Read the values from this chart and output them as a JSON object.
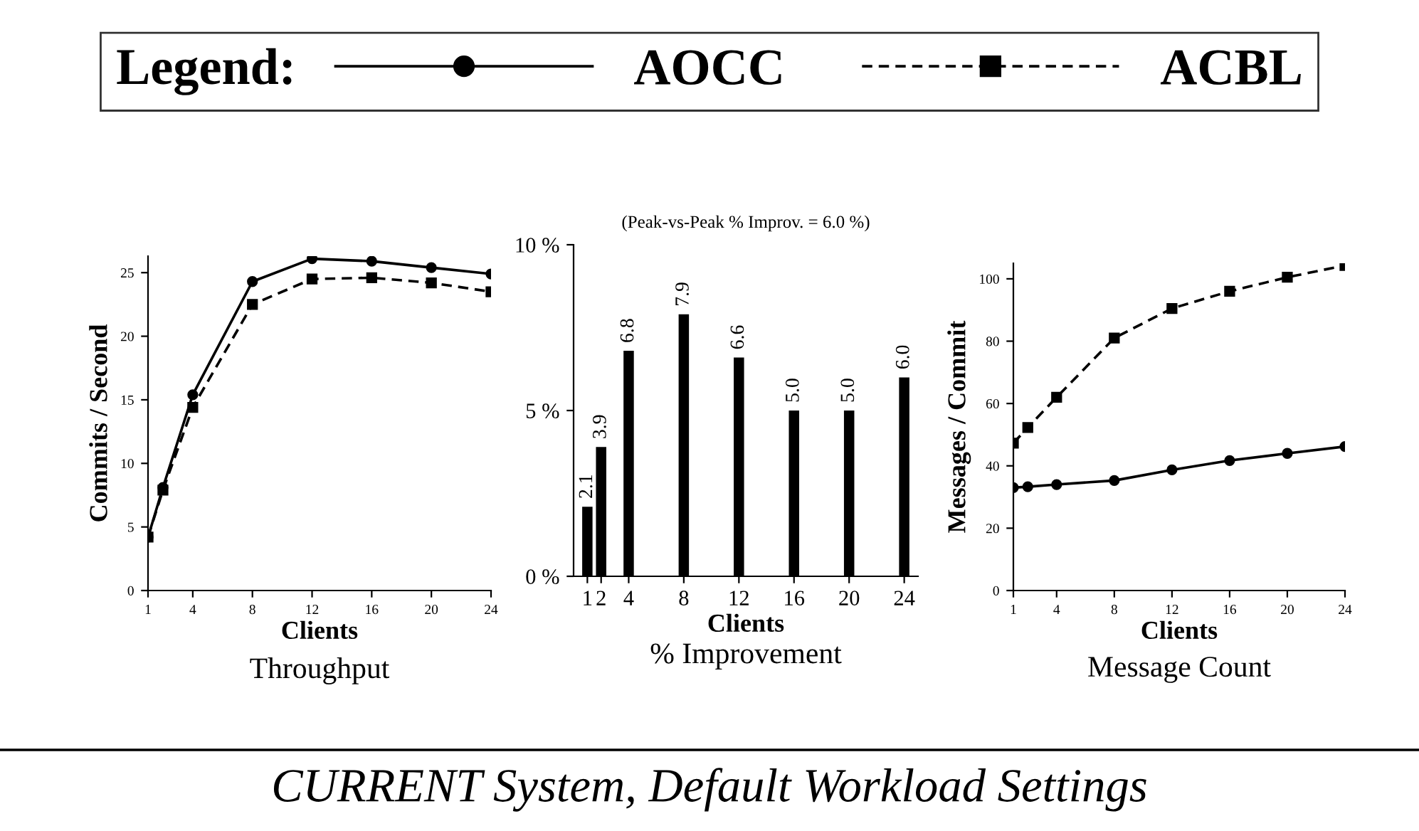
{
  "chart_data": [
    {
      "type": "line",
      "title": "Throughput",
      "xlabel": "Clients",
      "ylabel": "Commits / Second",
      "legend_title": "Legend:",
      "legend": "top",
      "x": [
        1,
        2,
        4,
        8,
        12,
        16,
        20,
        24
      ],
      "xlim": [
        1,
        24
      ],
      "xticks": [
        1,
        4,
        8,
        12,
        16,
        20,
        24
      ],
      "ylim": [
        0,
        26.3
      ],
      "yticks": [
        0,
        5,
        10,
        15,
        20,
        25
      ],
      "series": [
        {
          "name": "AOCC",
          "color": "#000000",
          "marker": "circle",
          "line_style": "solid",
          "values": [
            4.2,
            8.1,
            15.4,
            24.3,
            26.1,
            25.9,
            25.4,
            24.9
          ]
        },
        {
          "name": "ACBL",
          "color": "#000000",
          "marker": "square",
          "line_style": "dashed",
          "values": [
            4.2,
            7.9,
            14.4,
            22.5,
            24.5,
            24.6,
            24.2,
            23.5
          ]
        }
      ],
      "annotations": [
        "CURRENT System, Default Workload Settings"
      ]
    },
    {
      "type": "bar",
      "title": "% Improvement",
      "subtitle": "(Peak-vs-Peak % Improv. = 6.0 %)",
      "xlabel": "Clients",
      "value_labels": [
        "2.1",
        "3.9",
        "6.8",
        "7.9",
        "6.6",
        "5.0",
        "5.0",
        "6.0"
      ],
      "x": [
        1,
        2,
        4,
        8,
        12,
        16,
        20,
        24
      ],
      "xlim": [
        0,
        25
      ],
      "xticks": [
        1,
        2,
        4,
        8,
        12,
        16,
        20,
        24
      ],
      "ylim": [
        0,
        10
      ],
      "yticks": [
        {
          "value": 0,
          "label": "0 %"
        },
        {
          "value": 5,
          "label": "5 %"
        },
        {
          "value": 10,
          "label": "10 %"
        }
      ],
      "color": "#000000",
      "values": [
        2.1,
        3.9,
        6.8,
        7.9,
        6.6,
        5.0,
        5.0,
        6.0
      ]
    },
    {
      "type": "line",
      "title": "Message Count",
      "xlabel": "Clients",
      "ylabel": "Messages / Commit",
      "x": [
        1,
        2,
        4,
        8,
        12,
        16,
        20,
        24
      ],
      "xlim": [
        1,
        24
      ],
      "xticks": [
        1,
        4,
        8,
        12,
        16,
        20,
        24
      ],
      "ylim": [
        0,
        105
      ],
      "yticks": [
        0,
        20,
        40,
        60,
        80,
        100
      ],
      "series": [
        {
          "color": "#000000",
          "marker": "circle",
          "line_style": "solid",
          "values": [
            33,
            33.3,
            34,
            35.3,
            38.7,
            41.7,
            44,
            46.2
          ]
        },
        {
          "color": "#000000",
          "marker": "square",
          "line_style": "dashed",
          "values": [
            47.3,
            52.3,
            62,
            81,
            90.5,
            96,
            100.5,
            104.3
          ]
        }
      ]
    }
  ]
}
